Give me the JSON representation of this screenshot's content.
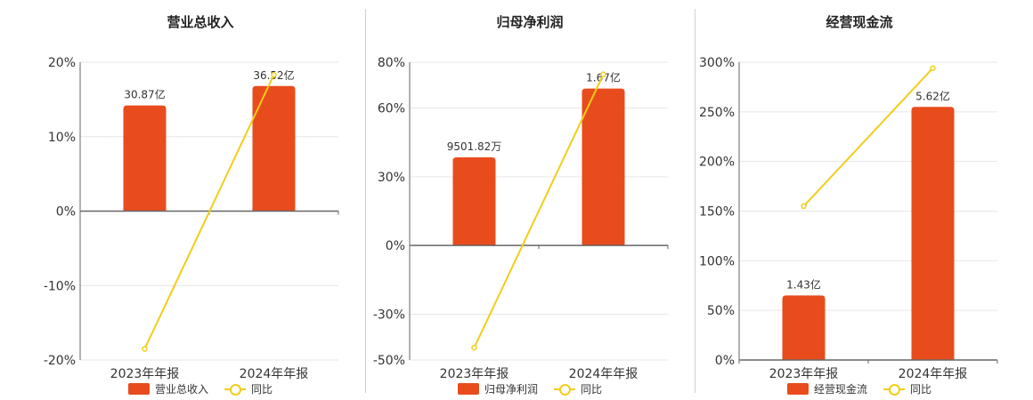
{
  "colors": {
    "bar": "#e84c1c",
    "line": "#f2cd1a",
    "axis": "#666666",
    "grid": "#e6e6e6"
  },
  "chart_data": [
    {
      "type": "bar",
      "title": "营业总收入",
      "categories": [
        "2023年年报",
        "2024年年报"
      ],
      "series": [
        {
          "name": "营业总收入",
          "type": "bar",
          "values": [
            14.2,
            16.8
          ],
          "labels": [
            "30.87亿",
            "36.52亿"
          ]
        },
        {
          "name": "同比",
          "type": "line",
          "values": [
            -18.5,
            18.3
          ]
        }
      ],
      "yticks": [
        "20%",
        "10%",
        "0%",
        "-10%",
        "-20%"
      ],
      "ylim": [
        -20,
        20
      ],
      "grid": true,
      "legend": "bottom"
    },
    {
      "type": "bar",
      "title": "归母净利润",
      "categories": [
        "2023年年报",
        "2024年年报"
      ],
      "series": [
        {
          "name": "归母净利润",
          "type": "bar",
          "values": [
            38.5,
            68.5
          ],
          "labels": [
            "9501.82万",
            "1.67亿"
          ]
        },
        {
          "name": "同比",
          "type": "line",
          "values": [
            -44.6,
            74.7
          ]
        }
      ],
      "yticks": [
        "80%",
        "60%",
        "30%",
        "0%",
        "-30%",
        "-50%"
      ],
      "ylim": [
        -50,
        80
      ],
      "grid": true,
      "legend": "bottom"
    },
    {
      "type": "bar",
      "title": "经营现金流",
      "categories": [
        "2023年年报",
        "2024年年报"
      ],
      "series": [
        {
          "name": "经营现金流",
          "type": "bar",
          "values": [
            65,
            255
          ],
          "labels": [
            "1.43亿",
            "5.62亿"
          ]
        },
        {
          "name": "同比",
          "type": "line",
          "values": [
            155,
            294
          ]
        }
      ],
      "yticks": [
        "300%",
        "250%",
        "200%",
        "150%",
        "100%",
        "50%",
        "0%"
      ],
      "ylim": [
        0,
        300
      ],
      "grid": true,
      "legend": "bottom"
    }
  ]
}
